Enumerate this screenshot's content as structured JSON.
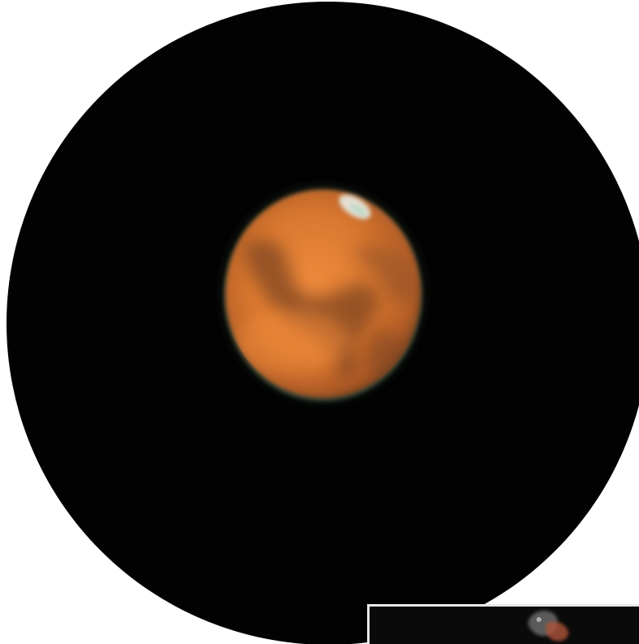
{
  "scene": {
    "subject": "mars",
    "background_color": "#020202",
    "page_color": "#ffffff",
    "planet_base_color": "#d9782f",
    "planet_dark_marking_color": "#8a4a22",
    "polar_cap_color": "#e9f3ee"
  },
  "inset": {
    "border_color": "#e8e8e8",
    "background_color": "#0a0a0a"
  }
}
